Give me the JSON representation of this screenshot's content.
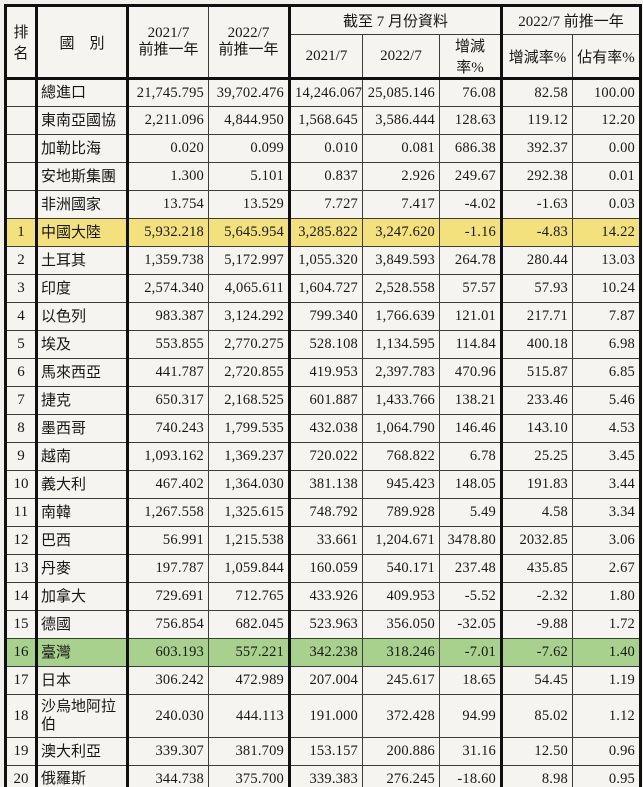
{
  "table": {
    "header": {
      "rank": "排名",
      "country": "國　別",
      "prev_year_2021": "2021/7\n前推一年",
      "prev_year_2022": "2022/7\n前推一年",
      "group_as_of_july": "截至 7 月份資料",
      "as_of_2021": "2021/7",
      "as_of_2022": "2022/7",
      "as_of_change_pct": "增減率%",
      "group_prev_year_2022": "2022/7 前推一年",
      "prev_change_pct": "增減率%",
      "prev_share_pct": "佔有率%"
    },
    "rows": [
      {
        "rank": "",
        "country": "總進口",
        "values": [
          "21,745.795",
          "39,702.476",
          "14,246.067",
          "25,085.146",
          "76.08",
          "82.58",
          "100.00"
        ],
        "highlight": ""
      },
      {
        "rank": "",
        "country": "東南亞國協",
        "values": [
          "2,211.096",
          "4,844.950",
          "1,568.645",
          "3,586.444",
          "128.63",
          "119.12",
          "12.20"
        ],
        "highlight": ""
      },
      {
        "rank": "",
        "country": "加勒比海",
        "values": [
          "0.020",
          "0.099",
          "0.010",
          "0.081",
          "686.38",
          "392.37",
          "0.00"
        ],
        "highlight": ""
      },
      {
        "rank": "",
        "country": "安地斯集團",
        "values": [
          "1.300",
          "5.101",
          "0.837",
          "2.926",
          "249.67",
          "292.38",
          "0.01"
        ],
        "highlight": ""
      },
      {
        "rank": "",
        "country": "非洲國家",
        "values": [
          "13.754",
          "13.529",
          "7.727",
          "7.417",
          "-4.02",
          "-1.63",
          "0.03"
        ],
        "highlight": ""
      },
      {
        "rank": "1",
        "country": "中國大陸",
        "values": [
          "5,932.218",
          "5,645.954",
          "3,285.822",
          "3,247.620",
          "-1.16",
          "-4.83",
          "14.22"
        ],
        "highlight": "yellow"
      },
      {
        "rank": "2",
        "country": "土耳其",
        "values": [
          "1,359.738",
          "5,172.997",
          "1,055.320",
          "3,849.593",
          "264.78",
          "280.44",
          "13.03"
        ],
        "highlight": ""
      },
      {
        "rank": "3",
        "country": "印度",
        "values": [
          "2,574.340",
          "4,065.611",
          "1,604.727",
          "2,528.558",
          "57.57",
          "57.93",
          "10.24"
        ],
        "highlight": ""
      },
      {
        "rank": "4",
        "country": "以色列",
        "values": [
          "983.387",
          "3,124.292",
          "799.340",
          "1,766.639",
          "121.01",
          "217.71",
          "7.87"
        ],
        "highlight": ""
      },
      {
        "rank": "5",
        "country": "埃及",
        "values": [
          "553.855",
          "2,770.275",
          "528.108",
          "1,134.595",
          "114.84",
          "400.18",
          "6.98"
        ],
        "highlight": ""
      },
      {
        "rank": "6",
        "country": "馬來西亞",
        "values": [
          "441.787",
          "2,720.855",
          "419.953",
          "2,397.783",
          "470.96",
          "515.87",
          "6.85"
        ],
        "highlight": ""
      },
      {
        "rank": "7",
        "country": "捷克",
        "values": [
          "650.317",
          "2,168.525",
          "601.887",
          "1,433.766",
          "138.21",
          "233.46",
          "5.46"
        ],
        "highlight": ""
      },
      {
        "rank": "8",
        "country": "墨西哥",
        "values": [
          "740.243",
          "1,799.535",
          "432.038",
          "1,064.790",
          "146.46",
          "143.10",
          "4.53"
        ],
        "highlight": ""
      },
      {
        "rank": "9",
        "country": "越南",
        "values": [
          "1,093.162",
          "1,369.237",
          "720.022",
          "768.822",
          "6.78",
          "25.25",
          "3.45"
        ],
        "highlight": ""
      },
      {
        "rank": "10",
        "country": "義大利",
        "values": [
          "467.402",
          "1,364.030",
          "381.138",
          "945.423",
          "148.05",
          "191.83",
          "3.44"
        ],
        "highlight": ""
      },
      {
        "rank": "11",
        "country": "南韓",
        "values": [
          "1,267.558",
          "1,325.615",
          "748.792",
          "789.928",
          "5.49",
          "4.58",
          "3.34"
        ],
        "highlight": ""
      },
      {
        "rank": "12",
        "country": "巴西",
        "values": [
          "56.991",
          "1,215.538",
          "33.661",
          "1,204.671",
          "3478.80",
          "2032.85",
          "3.06"
        ],
        "highlight": ""
      },
      {
        "rank": "13",
        "country": "丹麥",
        "values": [
          "197.787",
          "1,059.844",
          "160.059",
          "540.171",
          "237.48",
          "435.85",
          "2.67"
        ],
        "highlight": ""
      },
      {
        "rank": "14",
        "country": "加拿大",
        "values": [
          "729.691",
          "712.765",
          "433.926",
          "409.953",
          "-5.52",
          "-2.32",
          "1.80"
        ],
        "highlight": ""
      },
      {
        "rank": "15",
        "country": "德國",
        "values": [
          "756.854",
          "682.045",
          "523.963",
          "356.050",
          "-32.05",
          "-9.88",
          "1.72"
        ],
        "highlight": ""
      },
      {
        "rank": "16",
        "country": "臺灣",
        "values": [
          "603.193",
          "557.221",
          "342.238",
          "318.246",
          "-7.01",
          "-7.62",
          "1.40"
        ],
        "highlight": "green"
      },
      {
        "rank": "17",
        "country": "日本",
        "values": [
          "306.242",
          "472.989",
          "207.004",
          "245.617",
          "18.65",
          "54.45",
          "1.19"
        ],
        "highlight": ""
      },
      {
        "rank": "18",
        "country": "沙烏地阿拉伯",
        "values": [
          "240.030",
          "444.113",
          "191.000",
          "372.428",
          "94.99",
          "85.02",
          "1.12"
        ],
        "highlight": "",
        "tall": true
      },
      {
        "rank": "19",
        "country": "澳大利亞",
        "values": [
          "339.307",
          "381.709",
          "153.157",
          "200.886",
          "31.16",
          "12.50",
          "0.96"
        ],
        "highlight": ""
      },
      {
        "rank": "20",
        "country": "俄羅斯",
        "values": [
          "344.738",
          "375.700",
          "339.383",
          "276.245",
          "-18.60",
          "8.98",
          "0.95"
        ],
        "highlight": ""
      }
    ]
  },
  "colors": {
    "highlight_yellow": "#f2e17d",
    "highlight_green": "#a8d18d"
  }
}
